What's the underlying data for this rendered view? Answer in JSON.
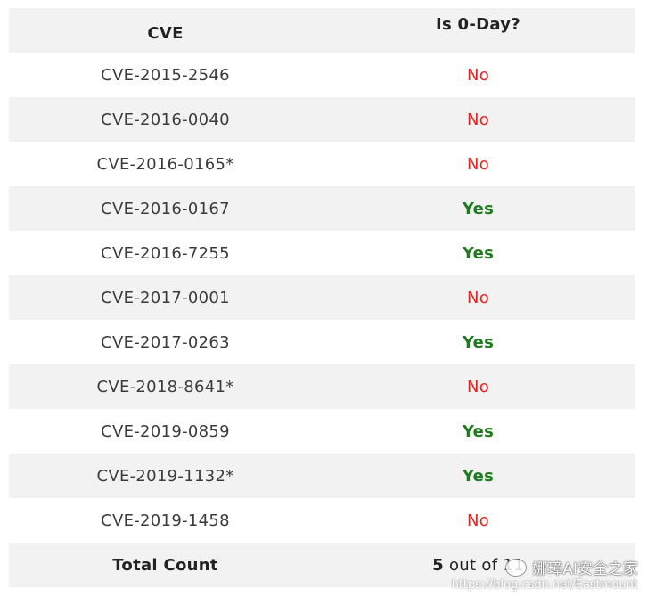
{
  "table": {
    "headers": [
      "CVE",
      "Is 0-Day?"
    ],
    "rows": [
      {
        "cve": "CVE-2015-2546",
        "zero_day": "No"
      },
      {
        "cve": "CVE-2016-0040",
        "zero_day": "No"
      },
      {
        "cve": "CVE-2016-0165*",
        "zero_day": "No"
      },
      {
        "cve": "CVE-2016-0167",
        "zero_day": "Yes"
      },
      {
        "cve": "CVE-2016-7255",
        "zero_day": "Yes"
      },
      {
        "cve": "CVE-2017-0001",
        "zero_day": "No"
      },
      {
        "cve": "CVE-2017-0263",
        "zero_day": "Yes"
      },
      {
        "cve": "CVE-2018-8641*",
        "zero_day": "No"
      },
      {
        "cve": "CVE-2019-0859",
        "zero_day": "Yes"
      },
      {
        "cve": "CVE-2019-1132*",
        "zero_day": "Yes"
      },
      {
        "cve": "CVE-2019-1458",
        "zero_day": "No"
      }
    ],
    "total": {
      "label": "Total Count",
      "count": "5",
      "of_text": " out of 11"
    }
  },
  "colors": {
    "no": "#e8231f",
    "yes": "#1f7a20",
    "shade": "#f2f2f2"
  },
  "watermark": {
    "title": "娜璋AI安全之家",
    "url": "https://blog.csdn.net/Eastmount"
  }
}
